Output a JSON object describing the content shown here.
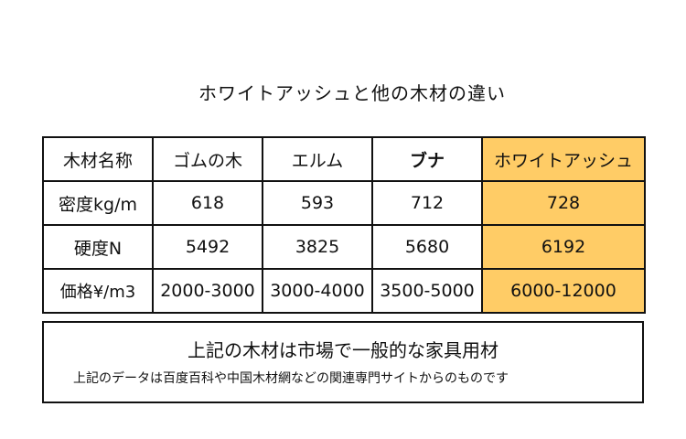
{
  "title": "ホワイトアッシュと他の木材の違い",
  "table": {
    "headers": [
      "木材名称",
      "ゴムの木",
      "エルム",
      "ブナ",
      "ホワイトアッシュ"
    ],
    "rows": [
      {
        "label": "密度kg/m",
        "values": [
          "618",
          "593",
          "712",
          "728"
        ]
      },
      {
        "label": "硬度N",
        "values": [
          "5492",
          "3825",
          "5680",
          "6192"
        ]
      },
      {
        "label": "価格¥/m3",
        "values": [
          "2000-3000",
          "3000-4000",
          "3500-5000",
          "6000-12000"
        ]
      }
    ]
  },
  "footer": {
    "main": "上記の木材は市場で一般的な家具用材",
    "note": "上記のデータは百度百科や中国木材網などの関連専門サイトからのものです"
  },
  "colors": {
    "highlight": "#ffcc66",
    "border": "#111111"
  }
}
